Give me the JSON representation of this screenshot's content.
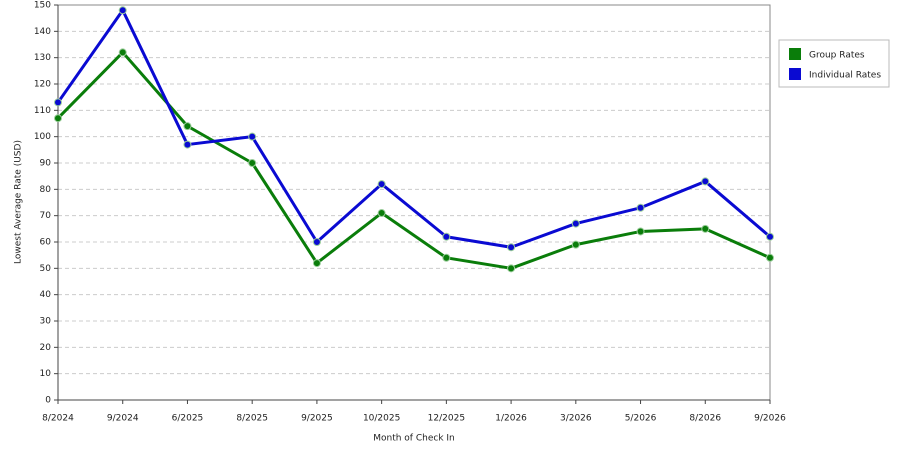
{
  "chart_data": {
    "type": "line",
    "x_label": "Month of Check In",
    "y_label": "Lowest Average Rate (USD)",
    "categories": [
      "8/2024",
      "9/2024",
      "6/2025",
      "8/2025",
      "9/2025",
      "10/2025",
      "12/2025",
      "1/2026",
      "3/2026",
      "5/2026",
      "8/2026",
      "9/2026"
    ],
    "series": [
      {
        "name": "Group Rates",
        "color": "#0a7d0a",
        "values": [
          107,
          132,
          104,
          90,
          52,
          71,
          54,
          50,
          59,
          64,
          65,
          54
        ]
      },
      {
        "name": "Individual Rates",
        "color": "#0a0ad2",
        "values": [
          113,
          148,
          97,
          100,
          60,
          82,
          62,
          58,
          67,
          73,
          83,
          62
        ]
      }
    ],
    "ylim": [
      0,
      150
    ],
    "yticks": [
      0,
      10,
      20,
      30,
      40,
      50,
      60,
      70,
      80,
      90,
      100,
      110,
      120,
      130,
      140,
      150
    ],
    "grid": true,
    "legend": "right"
  }
}
